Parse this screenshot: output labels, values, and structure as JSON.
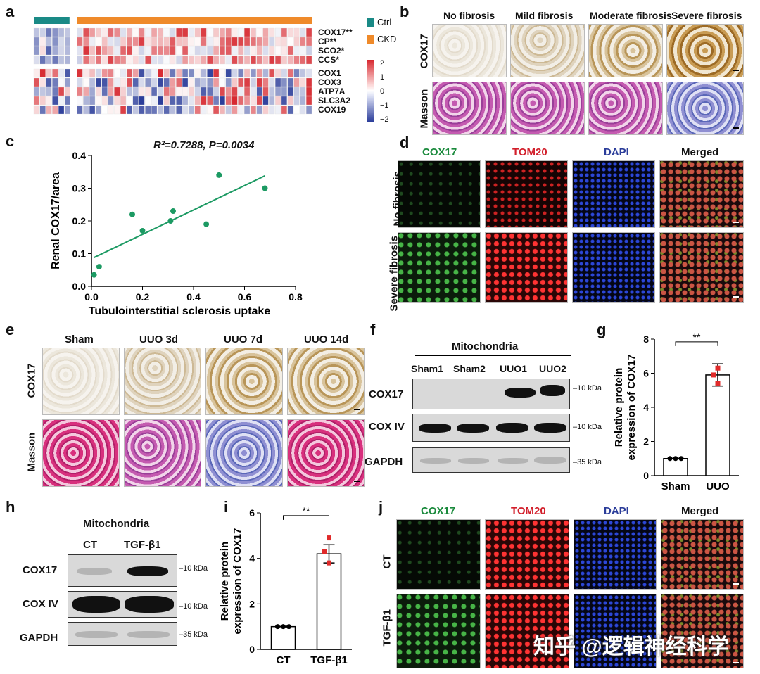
{
  "panels": {
    "a": "a",
    "b": "b",
    "c": "c",
    "d": "d",
    "e": "e",
    "f": "f",
    "g": "g",
    "h": "h",
    "i": "i",
    "j": "j"
  },
  "heatmap": {
    "genes_top": [
      "COX17**",
      "CP**",
      "SCO2*",
      "CCS*"
    ],
    "genes_bottom": [
      "COX1",
      "COX3",
      "ATP7A",
      "SLC3A2",
      "COX19"
    ],
    "legend": [
      {
        "label": "Ctrl",
        "color": "#1a8a86"
      },
      {
        "label": "CKD",
        "color": "#ef8a2a"
      }
    ],
    "scale_ticks": [
      "2",
      "1",
      "0",
      "−1",
      "−2"
    ],
    "colors": {
      "ctrl": "#1a8a86",
      "ckd": "#ef8a2a",
      "high": "#d7282f",
      "low": "#2b3d9a",
      "mid": "#ffffff"
    }
  },
  "b": {
    "columns": [
      "No fibrosis",
      "Mild fibrosis",
      "Moderate fibrosis",
      "Severe fibrosis"
    ],
    "rows": [
      "COX17",
      "Masson"
    ]
  },
  "c": {
    "annotation": "R²=0.7288, P=0.0034"
  },
  "chart_data": [
    {
      "type": "scatter",
      "panel": "c",
      "x": [
        0.01,
        0.03,
        0.16,
        0.2,
        0.31,
        0.32,
        0.45,
        0.5,
        0.68
      ],
      "y": [
        0.035,
        0.06,
        0.22,
        0.17,
        0.2,
        0.23,
        0.19,
        0.34,
        0.3
      ],
      "fit_line": {
        "x": [
          0.01,
          0.68
        ],
        "y": [
          0.088,
          0.338
        ]
      },
      "xlabel": "Tubulointerstitial sclerosis uptake",
      "ylabel": "Renal COX17/area",
      "xlim": [
        0,
        0.8
      ],
      "ylim": [
        0,
        0.4
      ],
      "xticks": [
        "0.0",
        "0.2",
        "0.4",
        "0.6",
        "0.8"
      ],
      "yticks": [
        "0.0",
        "0.1",
        "0.2",
        "0.3",
        "0.4"
      ],
      "color": "#1c9a63"
    },
    {
      "type": "bar",
      "panel": "g",
      "categories": [
        "Sham",
        "UUO"
      ],
      "values": [
        1.0,
        5.9
      ],
      "error": [
        0,
        0.65
      ],
      "points": [
        [
          1,
          1,
          1
        ],
        [
          6.3,
          5.9,
          5.4
        ]
      ],
      "ylabel": "Relative protein expression of COX17",
      "ylim": [
        0,
        8
      ],
      "yticks": [
        "0",
        "2",
        "4",
        "6",
        "8"
      ],
      "significance": "**"
    },
    {
      "type": "bar",
      "panel": "i",
      "categories": [
        "CT",
        "TGF-β1"
      ],
      "values": [
        1.0,
        4.2
      ],
      "error": [
        0,
        0.4
      ],
      "points": [
        [
          1,
          1,
          1
        ],
        [
          4.9,
          4.3,
          3.8
        ]
      ],
      "ylabel": "Relative protein expression of COX17",
      "ylim": [
        0,
        6
      ],
      "yticks": [
        "0",
        "2",
        "4",
        "6"
      ],
      "significance": "**"
    }
  ],
  "d": {
    "columns": [
      "COX17",
      "TOM20",
      "DAPI",
      "Merged"
    ],
    "rows": [
      "No fibrosis",
      "Severe fibrosis"
    ],
    "col_colors": [
      "#1a8a3c",
      "#d21f2b",
      "#2b3d9a",
      "#111111"
    ]
  },
  "e": {
    "columns": [
      "Sham",
      "UUO 3d",
      "UUO 7d",
      "UUO 14d"
    ],
    "rows": [
      "COX17",
      "Masson"
    ]
  },
  "f": {
    "group": "Mitochondria",
    "lanes": [
      "Sham1",
      "Sham2",
      "UUO1",
      "UUO2"
    ],
    "rows": [
      "COX17",
      "COX IV",
      "GAPDH"
    ],
    "kda": [
      "10 kDa",
      "10 kDa",
      "35 kDa"
    ]
  },
  "h": {
    "group": "Mitochondria",
    "lanes": [
      "CT",
      "TGF-β1"
    ],
    "rows": [
      "COX17",
      "COX IV",
      "GAPDH"
    ],
    "kda": [
      "10 kDa",
      "10 kDa",
      "35 kDa"
    ]
  },
  "j": {
    "columns": [
      "COX17",
      "TOM20",
      "DAPI",
      "Merged"
    ],
    "rows": [
      "CT",
      "TGF-β1"
    ]
  },
  "watermark": "知乎 @逻辑神经科学"
}
